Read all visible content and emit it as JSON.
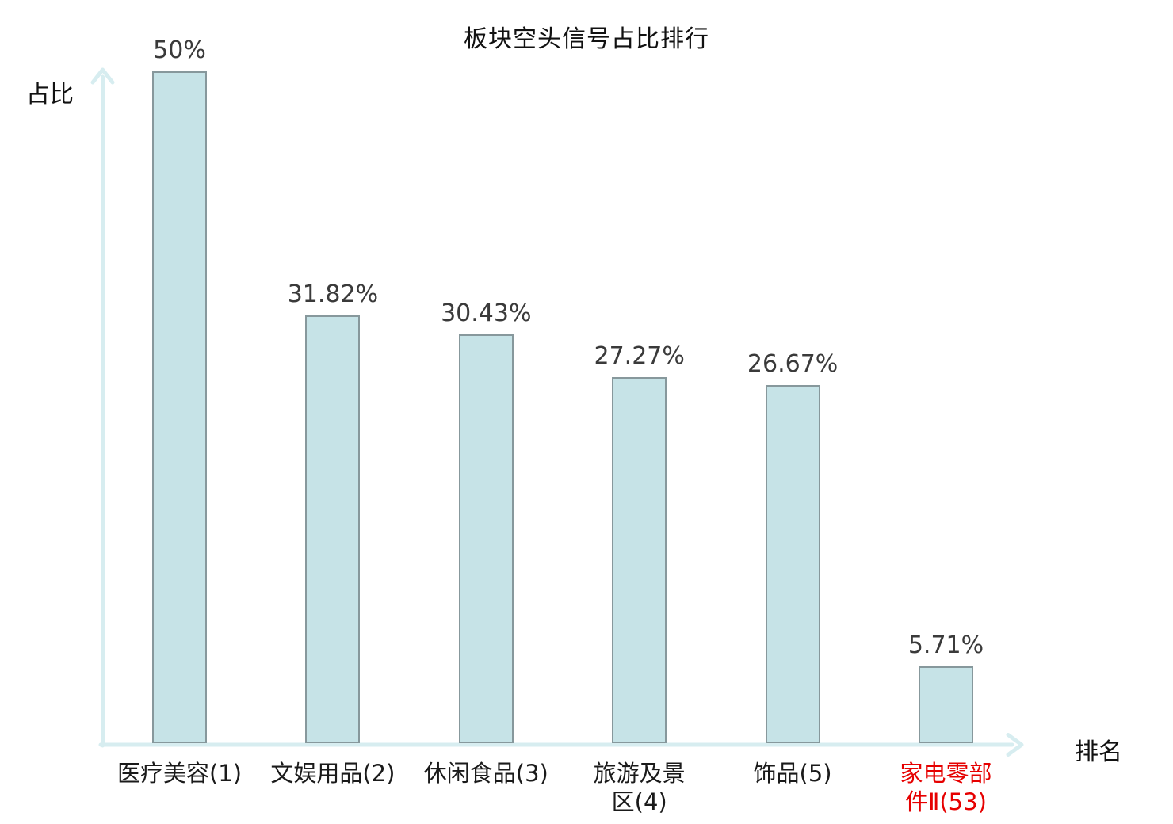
{
  "chart_data": {
    "type": "bar",
    "title": "板块空头信号占比排行",
    "xlabel": "排名",
    "ylabel": "占比",
    "ylim": [
      0,
      50
    ],
    "grid": false,
    "legend": false,
    "bars": [
      {
        "category": "医疗美容(1)",
        "value": 50,
        "value_label": "50%",
        "category_color": "#1a1a1a"
      },
      {
        "category": "文娱用品(2)",
        "value": 31.82,
        "value_label": "31.82%",
        "category_color": "#1a1a1a"
      },
      {
        "category": "休闲食品(3)",
        "value": 30.43,
        "value_label": "30.43%",
        "category_color": "#1a1a1a"
      },
      {
        "category": "旅游及景\n区(4)",
        "value": 27.27,
        "value_label": "27.27%",
        "category_color": "#1a1a1a"
      },
      {
        "category": "饰品(5)",
        "value": 26.67,
        "value_label": "26.67%",
        "category_color": "#1a1a1a"
      },
      {
        "category": "家电零部\n件Ⅱ(53)",
        "value": 5.71,
        "value_label": "5.71%",
        "category_color": "#e60000"
      }
    ],
    "colors": {
      "bar_fill": "#c6e3e7",
      "bar_border": "#87989c",
      "axis": "#d7edf0",
      "value_label": "#3a3a3a",
      "title": "#111111",
      "axis_label": "#111111",
      "highlight": "#e60000"
    }
  }
}
